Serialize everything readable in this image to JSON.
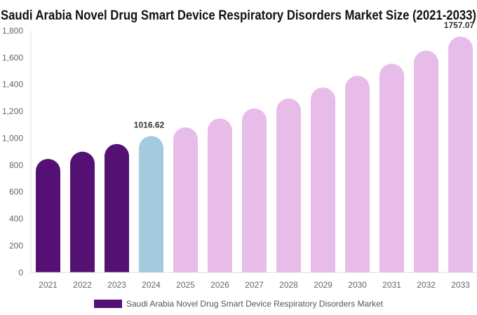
{
  "chart_data": {
    "type": "bar",
    "title": "Saudi Arabia Novel Drug Smart Device Respiratory Disorders Market Size (2021-2033)",
    "xlabel": "",
    "ylabel": "",
    "categories": [
      "2021",
      "2022",
      "2023",
      "2024",
      "2025",
      "2026",
      "2027",
      "2028",
      "2029",
      "2030",
      "2031",
      "2032",
      "2033"
    ],
    "series": [
      {
        "name": "Saudi Arabia Novel Drug Smart Device Respiratory Disorders Market",
        "values": [
          846,
          900,
          957,
          1016.62,
          1081,
          1147,
          1222,
          1296,
          1378,
          1465,
          1555,
          1653,
          1757.07
        ]
      }
    ],
    "data_labels": {
      "2024": "1016.62",
      "2033": "1757.07"
    },
    "ylim": [
      0,
      1800
    ],
    "yticks": [
      0,
      200,
      400,
      600,
      800,
      1000,
      1200,
      1400,
      1600,
      1800
    ],
    "ytick_labels": [
      "0",
      "200",
      "400",
      "600",
      "800",
      "1,000",
      "1,200",
      "1,400",
      "1,600",
      "1,800"
    ],
    "grid": false,
    "legend_placement": "bottom",
    "colors": {
      "historical": "#541173",
      "base_year": "#a4cadf",
      "forecast": "#e8bce8",
      "legend_swatch": "#541173"
    }
  }
}
